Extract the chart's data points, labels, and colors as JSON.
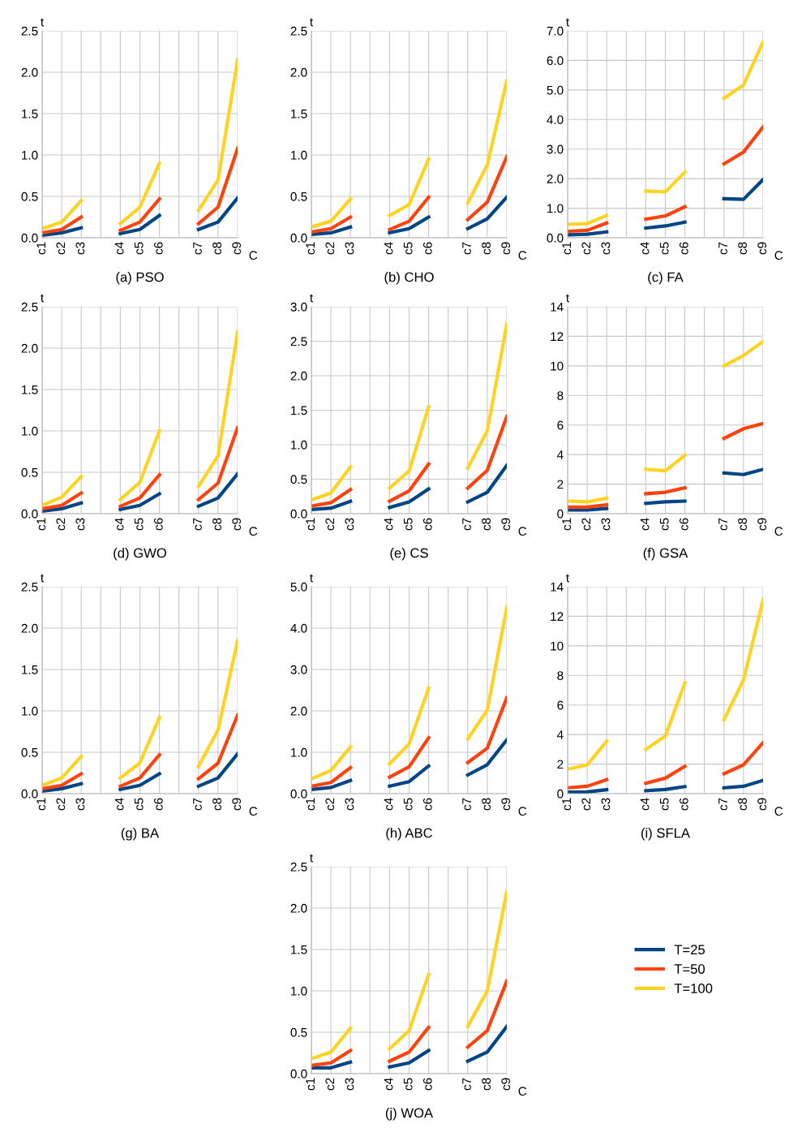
{
  "chart_data": [
    {
      "type": "line",
      "title": "(a) PSO",
      "xlabel": "C",
      "ylabel": "t",
      "categories": [
        "c1",
        "c2",
        "c3",
        null,
        "c4",
        "c5",
        "c6",
        null,
        "c7",
        "c8",
        "c9"
      ],
      "ylim": [
        0,
        2.5
      ],
      "yticks": [
        {
          "value": 0,
          "label": "0.0"
        },
        {
          "value": 0.5,
          "label": "0.5"
        },
        {
          "value": 1,
          "label": "1.0"
        },
        {
          "value": 1.5,
          "label": "1.5"
        },
        {
          "value": 2,
          "label": "2.0"
        },
        {
          "value": 2.5,
          "label": "2.5"
        }
      ],
      "grid": true,
      "legend": false,
      "marker": "none",
      "line_style": "solid",
      "series": [
        {
          "color": "#004586",
          "values": [
            0.03,
            0.06,
            0.12,
            null,
            0.05,
            0.1,
            0.27,
            null,
            0.1,
            0.19,
            0.48
          ]
        },
        {
          "color": "#ff420e",
          "values": [
            0.06,
            0.1,
            0.25,
            null,
            0.09,
            0.19,
            0.47,
            null,
            0.17,
            0.37,
            1.08
          ]
        },
        {
          "color": "#ffd320",
          "values": [
            0.11,
            0.19,
            0.45,
            null,
            0.17,
            0.37,
            0.9,
            null,
            0.33,
            0.7,
            2.15
          ]
        }
      ]
    },
    {
      "type": "line",
      "title": "(b) CHO",
      "xlabel": "C",
      "ylabel": "t",
      "categories": [
        "c1",
        "c2",
        "c3",
        null,
        "c4",
        "c5",
        "c6",
        null,
        "c7",
        "c8",
        "c9"
      ],
      "ylim": [
        0,
        2.5
      ],
      "yticks": [
        {
          "value": 0,
          "label": "0.0"
        },
        {
          "value": 0.5,
          "label": "0.5"
        },
        {
          "value": 1,
          "label": "1.0"
        },
        {
          "value": 1.5,
          "label": "1.5"
        },
        {
          "value": 2,
          "label": "2.0"
        },
        {
          "value": 2.5,
          "label": "2.5"
        }
      ],
      "grid": true,
      "legend": false,
      "marker": "none",
      "line_style": "solid",
      "series": [
        {
          "color": "#004586",
          "values": [
            0.04,
            0.06,
            0.13,
            null,
            0.06,
            0.11,
            0.25,
            null,
            0.11,
            0.23,
            0.49
          ]
        },
        {
          "color": "#ff420e",
          "values": [
            0.07,
            0.11,
            0.25,
            null,
            0.1,
            0.2,
            0.49,
            null,
            0.22,
            0.43,
            0.98
          ]
        },
        {
          "color": "#ffd320",
          "values": [
            0.13,
            0.2,
            0.47,
            null,
            0.27,
            0.4,
            0.95,
            null,
            0.42,
            0.88,
            1.9
          ]
        }
      ]
    },
    {
      "type": "line",
      "title": "(c) FA",
      "xlabel": "C",
      "ylabel": "t",
      "categories": [
        "c1",
        "c2",
        "c3",
        null,
        "c4",
        "c5",
        "c6",
        null,
        "c7",
        "c8",
        "c9"
      ],
      "ylim": [
        0,
        7
      ],
      "yticks": [
        {
          "value": 0,
          "label": "0.0"
        },
        {
          "value": 1,
          "label": "1.0"
        },
        {
          "value": 2,
          "label": "2.0"
        },
        {
          "value": 3,
          "label": "3.0"
        },
        {
          "value": 4,
          "label": "4.0"
        },
        {
          "value": 5,
          "label": "5.0"
        },
        {
          "value": 6,
          "label": "6.0"
        },
        {
          "value": 7,
          "label": "7.0"
        }
      ],
      "grid": true,
      "legend": false,
      "marker": "none",
      "line_style": "solid",
      "series": [
        {
          "color": "#004586",
          "values": [
            0.1,
            0.12,
            0.2,
            null,
            0.33,
            0.4,
            0.53,
            null,
            1.32,
            1.3,
            1.97
          ]
        },
        {
          "color": "#ff420e",
          "values": [
            0.22,
            0.25,
            0.5,
            null,
            0.63,
            0.74,
            1.05,
            null,
            2.5,
            2.9,
            3.75
          ]
        },
        {
          "color": "#ffd320",
          "values": [
            0.45,
            0.48,
            0.75,
            null,
            1.58,
            1.55,
            2.22,
            null,
            4.72,
            5.17,
            6.62
          ]
        }
      ]
    },
    {
      "type": "line",
      "title": "(d) GWO",
      "xlabel": "C",
      "ylabel": "t",
      "categories": [
        "c1",
        "c2",
        "c3",
        null,
        "c4",
        "c5",
        "c6",
        null,
        "c7",
        "c8",
        "c9"
      ],
      "ylim": [
        0,
        2.5
      ],
      "yticks": [
        {
          "value": 0,
          "label": "0.0"
        },
        {
          "value": 0.5,
          "label": "0.5"
        },
        {
          "value": 1,
          "label": "1.0"
        },
        {
          "value": 1.5,
          "label": "1.5"
        },
        {
          "value": 2,
          "label": "2.0"
        },
        {
          "value": 2.5,
          "label": "2.5"
        }
      ],
      "grid": true,
      "legend": false,
      "marker": "none",
      "line_style": "solid",
      "series": [
        {
          "color": "#004586",
          "values": [
            0.03,
            0.06,
            0.13,
            null,
            0.05,
            0.1,
            0.24,
            null,
            0.09,
            0.19,
            0.48
          ]
        },
        {
          "color": "#ff420e",
          "values": [
            0.06,
            0.1,
            0.25,
            null,
            0.09,
            0.19,
            0.47,
            null,
            0.17,
            0.37,
            1.04
          ]
        },
        {
          "color": "#ffd320",
          "values": [
            0.1,
            0.2,
            0.45,
            null,
            0.17,
            0.38,
            1.0,
            null,
            0.33,
            0.7,
            2.2
          ]
        }
      ]
    },
    {
      "type": "line",
      "title": "(e) CS",
      "xlabel": "C",
      "ylabel": "t",
      "categories": [
        "c1",
        "c2",
        "c3",
        null,
        "c4",
        "c5",
        "c6",
        null,
        "c7",
        "c8",
        "c9"
      ],
      "ylim": [
        0,
        3
      ],
      "yticks": [
        {
          "value": 0,
          "label": "0.0"
        },
        {
          "value": 0.5,
          "label": "0.5"
        },
        {
          "value": 1,
          "label": "1.0"
        },
        {
          "value": 1.5,
          "label": "1.5"
        },
        {
          "value": 2,
          "label": "2.0"
        },
        {
          "value": 2.5,
          "label": "2.5"
        },
        {
          "value": 3,
          "label": "3.0"
        }
      ],
      "grid": true,
      "legend": false,
      "marker": "none",
      "line_style": "solid",
      "series": [
        {
          "color": "#004586",
          "values": [
            0.06,
            0.08,
            0.18,
            null,
            0.09,
            0.17,
            0.36,
            null,
            0.17,
            0.31,
            0.7
          ]
        },
        {
          "color": "#ff420e",
          "values": [
            0.11,
            0.16,
            0.35,
            null,
            0.18,
            0.33,
            0.72,
            null,
            0.37,
            0.63,
            1.41
          ]
        },
        {
          "color": "#ffd320",
          "values": [
            0.2,
            0.3,
            0.68,
            null,
            0.37,
            0.62,
            1.55,
            null,
            0.66,
            1.2,
            2.75
          ]
        }
      ]
    },
    {
      "type": "line",
      "title": "(f) GSA",
      "xlabel": "C",
      "ylabel": "t",
      "categories": [
        "c1",
        "c2",
        "c3",
        null,
        "c4",
        "c5",
        "c6",
        null,
        "c7",
        "c8",
        "c9"
      ],
      "ylim": [
        0,
        14
      ],
      "yticks": [
        0,
        2,
        4,
        6,
        8,
        10,
        12,
        14
      ],
      "grid": true,
      "legend": false,
      "marker": "none",
      "line_style": "solid",
      "series": [
        {
          "color": "#004586",
          "values": [
            0.25,
            0.25,
            0.35,
            null,
            0.7,
            0.8,
            0.85,
            null,
            2.75,
            2.65,
            3.0
          ]
        },
        {
          "color": "#ff420e",
          "values": [
            0.45,
            0.45,
            0.6,
            null,
            1.35,
            1.45,
            1.75,
            null,
            5.1,
            5.75,
            6.1
          ]
        },
        {
          "color": "#ffd320",
          "values": [
            0.85,
            0.8,
            1.05,
            null,
            3.0,
            2.9,
            3.95,
            null,
            10.0,
            10.7,
            11.65
          ]
        }
      ]
    },
    {
      "type": "line",
      "title": "(g) BA",
      "xlabel": "C",
      "ylabel": "t",
      "categories": [
        "c1",
        "c2",
        "c3",
        null,
        "c4",
        "c5",
        "c6",
        null,
        "c7",
        "c8",
        "c9"
      ],
      "ylim": [
        0,
        2.5
      ],
      "yticks": [
        {
          "value": 0,
          "label": "0.0"
        },
        {
          "value": 0.5,
          "label": "0.5"
        },
        {
          "value": 1,
          "label": "1.0"
        },
        {
          "value": 1.5,
          "label": "1.5"
        },
        {
          "value": 2,
          "label": "2.0"
        },
        {
          "value": 2.5,
          "label": "2.5"
        }
      ],
      "grid": true,
      "legend": false,
      "marker": "none",
      "line_style": "solid",
      "series": [
        {
          "color": "#004586",
          "values": [
            0.03,
            0.06,
            0.12,
            null,
            0.05,
            0.1,
            0.24,
            null,
            0.09,
            0.19,
            0.48
          ]
        },
        {
          "color": "#ff420e",
          "values": [
            0.06,
            0.1,
            0.24,
            null,
            0.09,
            0.19,
            0.47,
            null,
            0.18,
            0.37,
            0.95
          ]
        },
        {
          "color": "#ffd320",
          "values": [
            0.1,
            0.19,
            0.45,
            null,
            0.19,
            0.37,
            0.92,
            null,
            0.33,
            0.77,
            1.85
          ]
        }
      ]
    },
    {
      "type": "line",
      "title": "(h) ABC",
      "xlabel": "C",
      "ylabel": "t",
      "categories": [
        "c1",
        "c2",
        "c3",
        null,
        "c4",
        "c5",
        "c6",
        null,
        "c7",
        "c8",
        "c9"
      ],
      "ylim": [
        0,
        5
      ],
      "yticks": [
        {
          "value": 0,
          "label": "0.0"
        },
        {
          "value": 1,
          "label": "1.0"
        },
        {
          "value": 2,
          "label": "2.0"
        },
        {
          "value": 3,
          "label": "3.0"
        },
        {
          "value": 4,
          "label": "4.0"
        },
        {
          "value": 5,
          "label": "5.0"
        }
      ],
      "grid": true,
      "legend": false,
      "marker": "none",
      "line_style": "solid",
      "series": [
        {
          "color": "#004586",
          "values": [
            0.1,
            0.15,
            0.32,
            null,
            0.18,
            0.29,
            0.67,
            null,
            0.45,
            0.7,
            1.3
          ]
        },
        {
          "color": "#ff420e",
          "values": [
            0.18,
            0.27,
            0.63,
            null,
            0.4,
            0.65,
            1.35,
            null,
            0.75,
            1.1,
            2.32
          ]
        },
        {
          "color": "#ffd320",
          "values": [
            0.36,
            0.56,
            1.13,
            null,
            0.72,
            1.2,
            2.55,
            null,
            1.32,
            2.02,
            4.5
          ]
        }
      ]
    },
    {
      "type": "line",
      "title": "(i) SFLA",
      "xlabel": "C",
      "ylabel": "t",
      "categories": [
        "c1",
        "c2",
        "c3",
        null,
        "c4",
        "c5",
        "c6",
        null,
        "c7",
        "c8",
        "c9"
      ],
      "ylim": [
        0,
        14
      ],
      "yticks": [
        0,
        2,
        4,
        6,
        8,
        10,
        12,
        14
      ],
      "grid": true,
      "legend": false,
      "marker": "none",
      "line_style": "solid",
      "series": [
        {
          "color": "#004586",
          "values": [
            0.1,
            0.12,
            0.27,
            null,
            0.2,
            0.28,
            0.48,
            null,
            0.4,
            0.5,
            0.9
          ]
        },
        {
          "color": "#ff420e",
          "values": [
            0.4,
            0.5,
            0.95,
            null,
            0.7,
            1.05,
            1.85,
            null,
            1.35,
            1.95,
            3.45
          ]
        },
        {
          "color": "#ffd320",
          "values": [
            1.65,
            1.95,
            3.55,
            null,
            3.0,
            3.9,
            7.5,
            null,
            5.0,
            7.7,
            13.1
          ]
        }
      ]
    },
    {
      "type": "line",
      "title": "(j) WOA",
      "xlabel": "C",
      "ylabel": "t",
      "categories": [
        "c1",
        "c2",
        "c3",
        null,
        "c4",
        "c5",
        "c6",
        null,
        "c7",
        "c8",
        "c9"
      ],
      "ylim": [
        0,
        2.5
      ],
      "yticks": [
        {
          "value": 0,
          "label": "0.0"
        },
        {
          "value": 0.5,
          "label": "0.5"
        },
        {
          "value": 1,
          "label": "1.0"
        },
        {
          "value": 1.5,
          "label": "1.5"
        },
        {
          "value": 2,
          "label": "2.0"
        },
        {
          "value": 2.5,
          "label": "2.5"
        }
      ],
      "grid": true,
      "legend": "right",
      "marker": "none",
      "line_style": "solid",
      "series": [
        {
          "name": "T=25",
          "color": "#004586",
          "values": [
            0.07,
            0.07,
            0.14,
            null,
            0.08,
            0.13,
            0.28,
            null,
            0.15,
            0.26,
            0.57
          ]
        },
        {
          "name": "T=50",
          "color": "#ff420e",
          "values": [
            0.1,
            0.13,
            0.28,
            null,
            0.15,
            0.26,
            0.56,
            null,
            0.32,
            0.52,
            1.12
          ]
        },
        {
          "name": "T=100",
          "color": "#ffd320",
          "values": [
            0.18,
            0.26,
            0.55,
            null,
            0.3,
            0.52,
            1.2,
            null,
            0.57,
            1.0,
            2.2
          ]
        }
      ]
    }
  ]
}
